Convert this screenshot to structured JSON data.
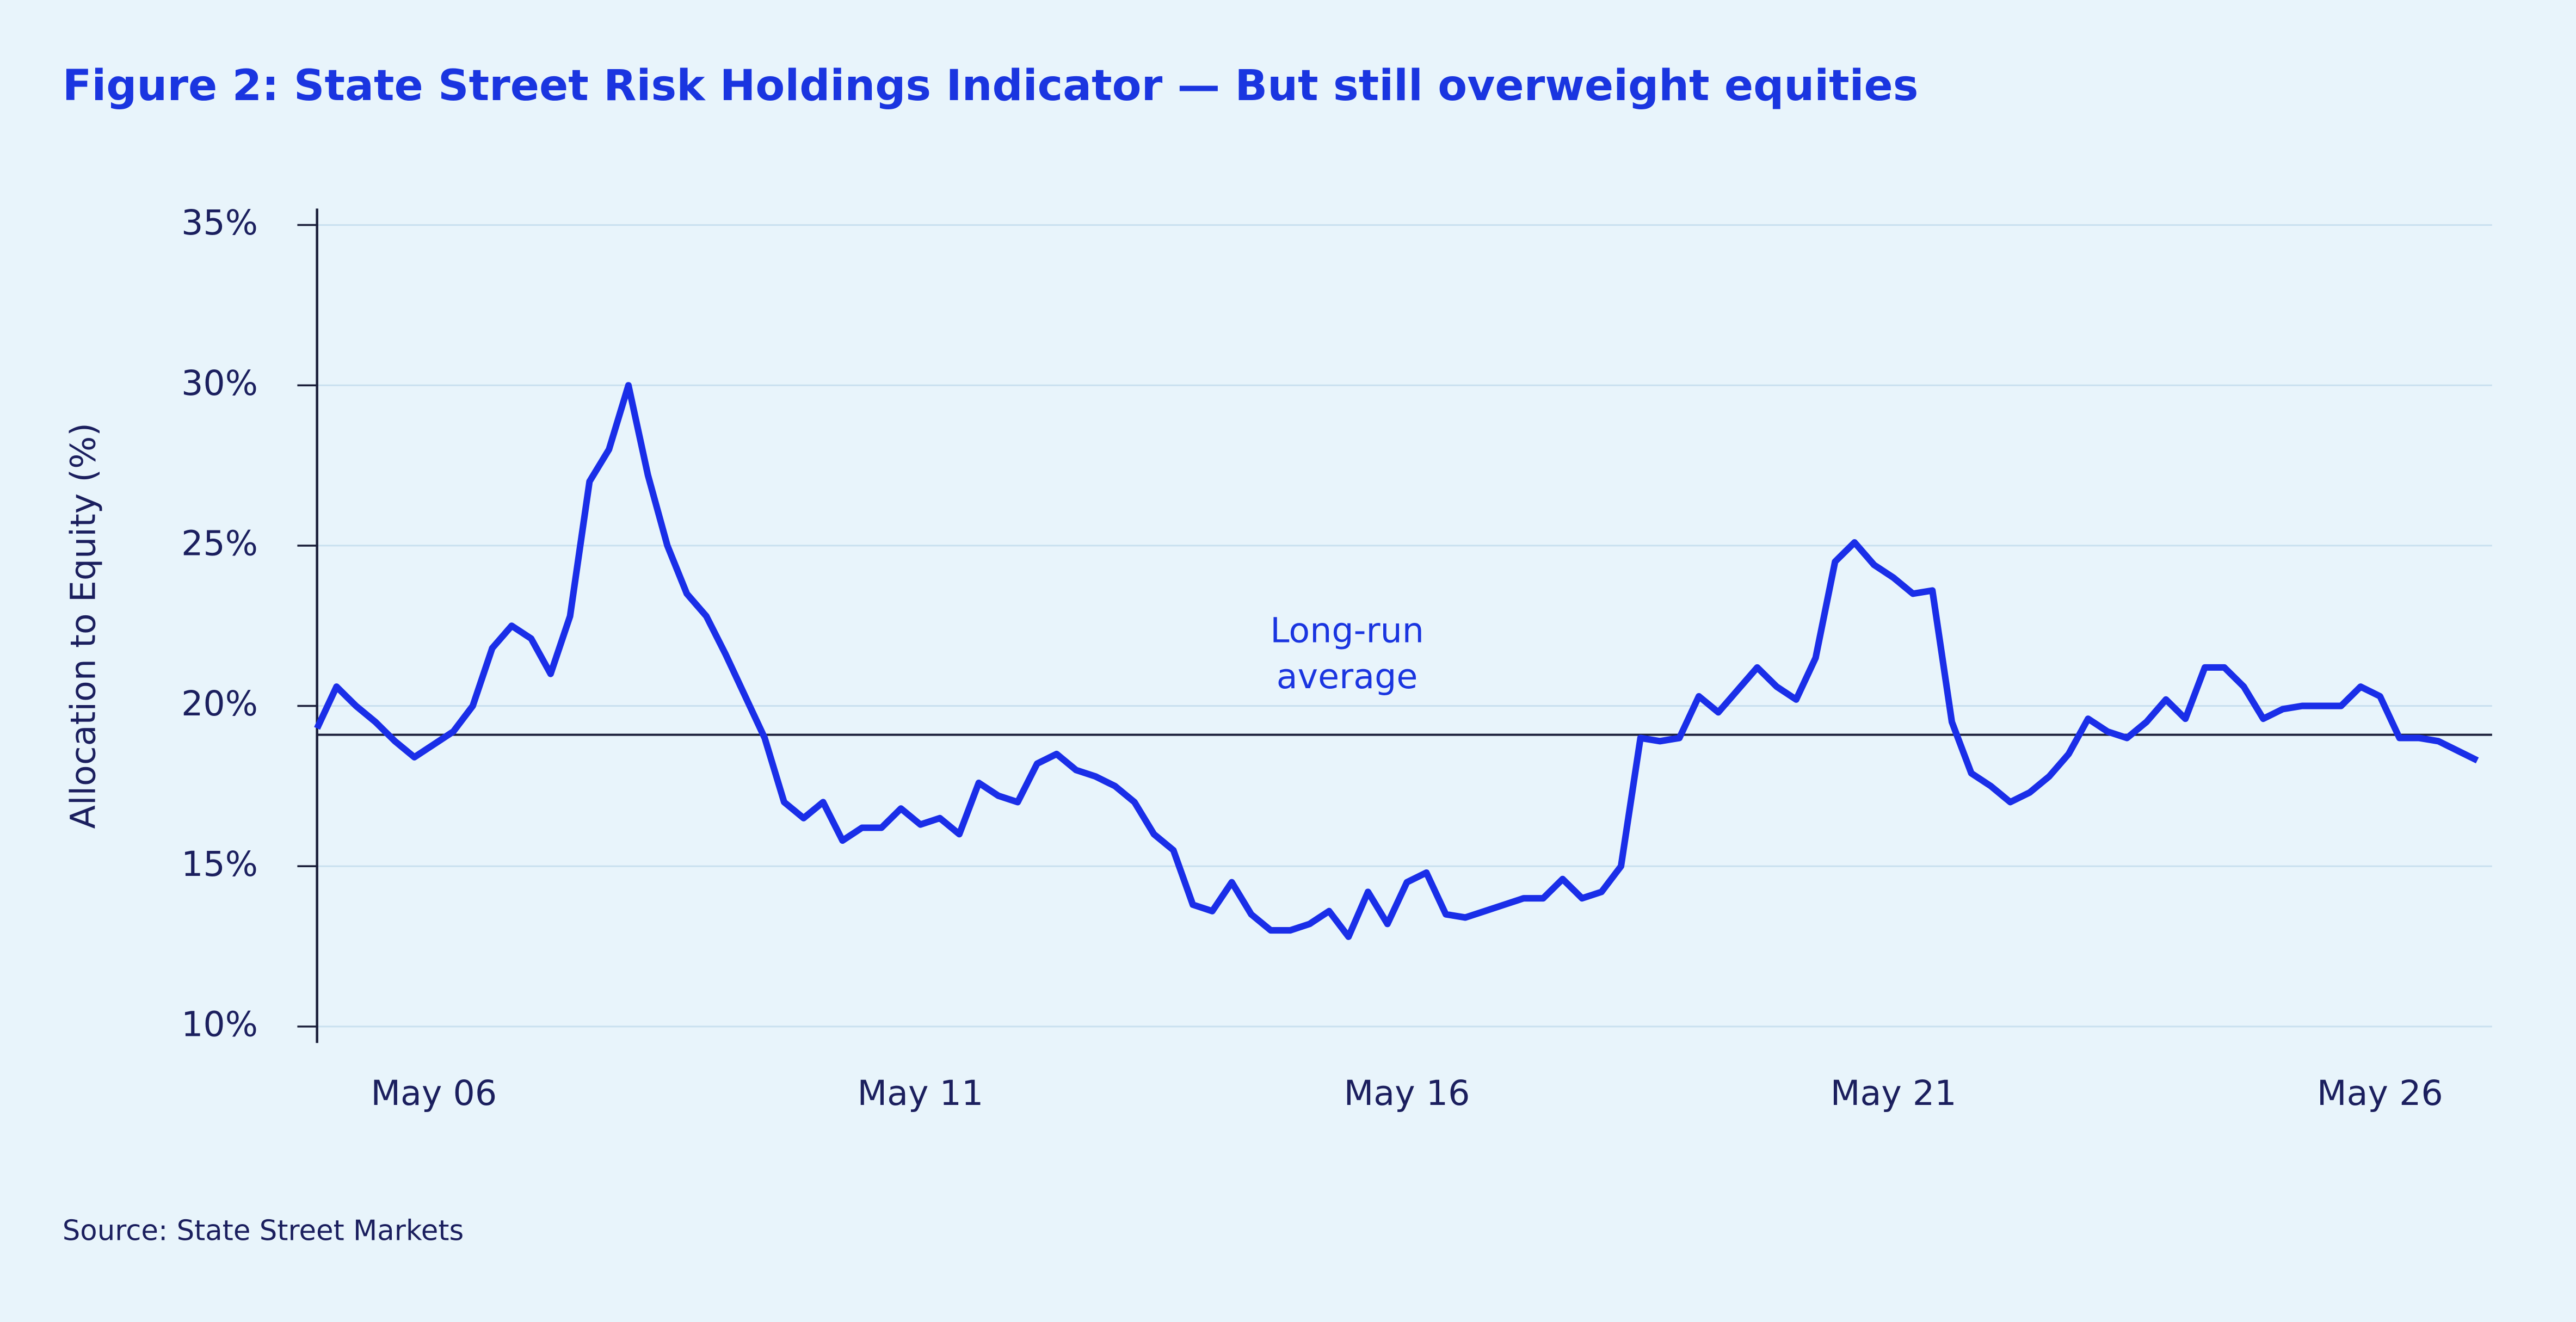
{
  "chart_data": {
    "type": "line",
    "title": "Figure 2: State Street Risk Holdings Indicator — But still overweight equities",
    "y_label": "Allocation to Equity (%)",
    "source": "Source: State Street Markets",
    "categories": [
      null,
      null,
      null,
      null,
      null,
      null,
      "May 06",
      null,
      null,
      null,
      null,
      null,
      null,
      null,
      null,
      null,
      null,
      null,
      null,
      null,
      null,
      null,
      null,
      null,
      null,
      null,
      null,
      null,
      null,
      null,
      null,
      "May 11",
      null,
      null,
      null,
      null,
      null,
      null,
      null,
      null,
      null,
      null,
      null,
      null,
      null,
      null,
      null,
      null,
      null,
      null,
      null,
      null,
      null,
      null,
      null,
      null,
      "May 16",
      null,
      null,
      null,
      null,
      null,
      null,
      null,
      null,
      null,
      null,
      null,
      null,
      null,
      null,
      null,
      null,
      null,
      null,
      null,
      null,
      null,
      null,
      null,
      null,
      "May 21",
      null,
      null,
      null,
      null,
      null,
      null,
      null,
      null,
      null,
      null,
      null,
      null,
      null,
      null,
      null,
      null,
      null,
      null,
      null,
      null,
      null,
      null,
      null,
      null,
      "May 26",
      null,
      null,
      null,
      null,
      null
    ],
    "values": [
      19.3,
      20.6,
      20.0,
      19.5,
      18.9,
      18.4,
      18.8,
      19.2,
      20.0,
      21.8,
      22.5,
      22.1,
      21.0,
      22.8,
      27.0,
      28.0,
      30.0,
      27.2,
      25.0,
      23.5,
      22.8,
      21.6,
      20.3,
      19.0,
      17.0,
      16.5,
      17.0,
      15.8,
      16.2,
      16.2,
      16.8,
      16.3,
      16.5,
      16.0,
      17.6,
      17.2,
      17.0,
      18.2,
      18.5,
      18.0,
      17.8,
      17.5,
      17.0,
      16.0,
      15.5,
      13.8,
      13.6,
      14.5,
      13.5,
      13.0,
      13.0,
      13.2,
      13.6,
      12.8,
      14.2,
      13.2,
      14.5,
      14.8,
      13.5,
      13.4,
      13.6,
      13.8,
      14.0,
      14.0,
      14.6,
      14.0,
      14.2,
      15.0,
      19.0,
      18.9,
      19.0,
      20.3,
      19.8,
      20.5,
      21.2,
      20.6,
      20.2,
      21.5,
      24.5,
      25.1,
      24.4,
      24.0,
      23.5,
      23.6,
      19.5,
      17.9,
      17.5,
      17.0,
      17.3,
      17.8,
      18.5,
      19.6,
      19.2,
      19.0,
      19.5,
      20.2,
      19.6,
      21.2,
      21.2,
      20.6,
      19.6,
      19.9,
      20.0,
      20.0,
      20.0,
      20.6,
      20.3,
      19.0,
      19.0,
      18.9,
      18.6,
      18.3
    ],
    "color": "#1a2ee8",
    "ylim": [
      10,
      35
    ],
    "yticks": [
      {
        "value": 10,
        "label": "10%"
      },
      {
        "value": 15,
        "label": "15%"
      },
      {
        "value": 20,
        "label": "20%"
      },
      {
        "value": 25,
        "label": "25%"
      },
      {
        "value": 30,
        "label": "30%"
      },
      {
        "value": 35,
        "label": "35%"
      }
    ],
    "grid": true,
    "reference_line": {
      "value": 19.1,
      "label": "Long-run average",
      "color": "#1b1f3a"
    }
  }
}
